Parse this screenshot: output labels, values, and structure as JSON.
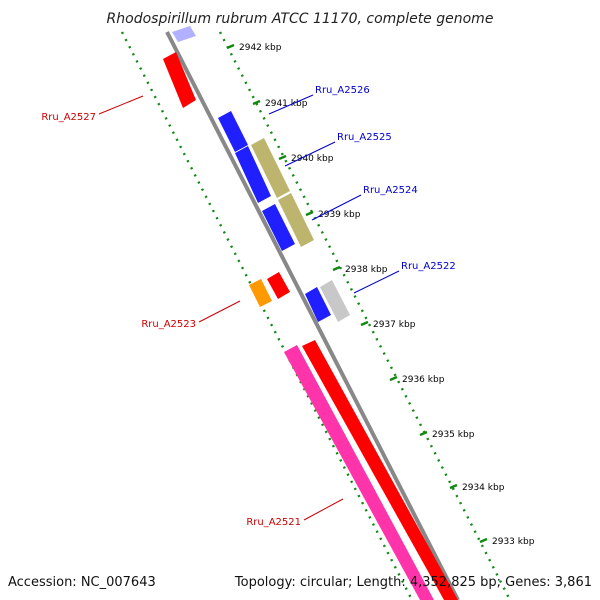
{
  "title": "Rhodospirillum rubrum ATCC 11170, complete genome",
  "footer": {
    "accession": "Accession: NC_007643",
    "summary": "Topology: circular; Length: 4,352,825 bp; Genes: 3,861"
  },
  "colors": {
    "backbone": "#888888",
    "tick_dots": "#118811",
    "tick_label": "#000000",
    "forward_label": "#0000cc",
    "reverse_label": "#cc0000",
    "blue": "#1f1fff",
    "red": "#ff0000",
    "olive": "#bdb56e",
    "grey": "#c8c8c8",
    "orange": "#ff9900",
    "pink": "#ff33aa"
  },
  "ticks": [
    "2942 kbp",
    "2941 kbp",
    "2940 kbp",
    "2939 kbp",
    "2938 kbp",
    "2937 kbp",
    "2936 kbp",
    "2935 kbp",
    "2934 kbp",
    "2933 kbp"
  ],
  "gene_labels": [
    {
      "id": "forward",
      "text": "Rru_A2526"
    },
    {
      "id": "forward",
      "text": "Rru_A2525"
    },
    {
      "id": "forward",
      "text": "Rru_A2524"
    },
    {
      "id": "forward",
      "text": "Rru_A2522"
    },
    {
      "id": "reverse",
      "text": "Rru_A2527"
    },
    {
      "id": "reverse",
      "text": "Rru_A2523"
    },
    {
      "id": "reverse",
      "text": "Rru_A2521"
    }
  ]
}
